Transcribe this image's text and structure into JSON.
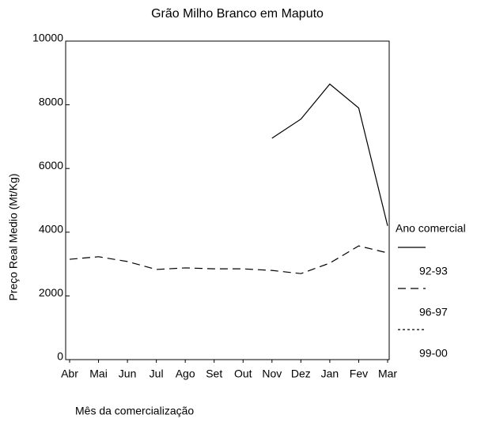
{
  "chart_data": {
    "type": "line",
    "title": "Grão Milho Branco em Maputo",
    "ylabel": "Preço Real Medio (Mt/Kg)",
    "xlabel": "Mês da comercialização",
    "legend_title": "Ano comercial",
    "categories": [
      "Abr",
      "Mai",
      "Jun",
      "Jul",
      "Ago",
      "Set",
      "Out",
      "Nov",
      "Dez",
      "Jan",
      "Fev",
      "Mar"
    ],
    "series": [
      {
        "name": "92-93",
        "color": "#000000",
        "dash": "solid",
        "values": [
          null,
          null,
          null,
          null,
          null,
          null,
          null,
          6950,
          7550,
          8650,
          7900,
          4200
        ]
      },
      {
        "name": "96-97",
        "color": "#000000",
        "dash": "dashed",
        "values": [
          3150,
          3230,
          3080,
          2830,
          2880,
          2850,
          2850,
          2800,
          2700,
          3030,
          3570,
          3350
        ]
      },
      {
        "name": "99-00",
        "color": "#000000",
        "dash": "dotted",
        "values": [
          null,
          null,
          null,
          null,
          null,
          null,
          null,
          null,
          null,
          null,
          null,
          null
        ]
      }
    ],
    "ylim": [
      0,
      10000
    ],
    "yticks": [
      0,
      2000,
      4000,
      6000,
      8000,
      10000
    ],
    "legend": "right"
  }
}
